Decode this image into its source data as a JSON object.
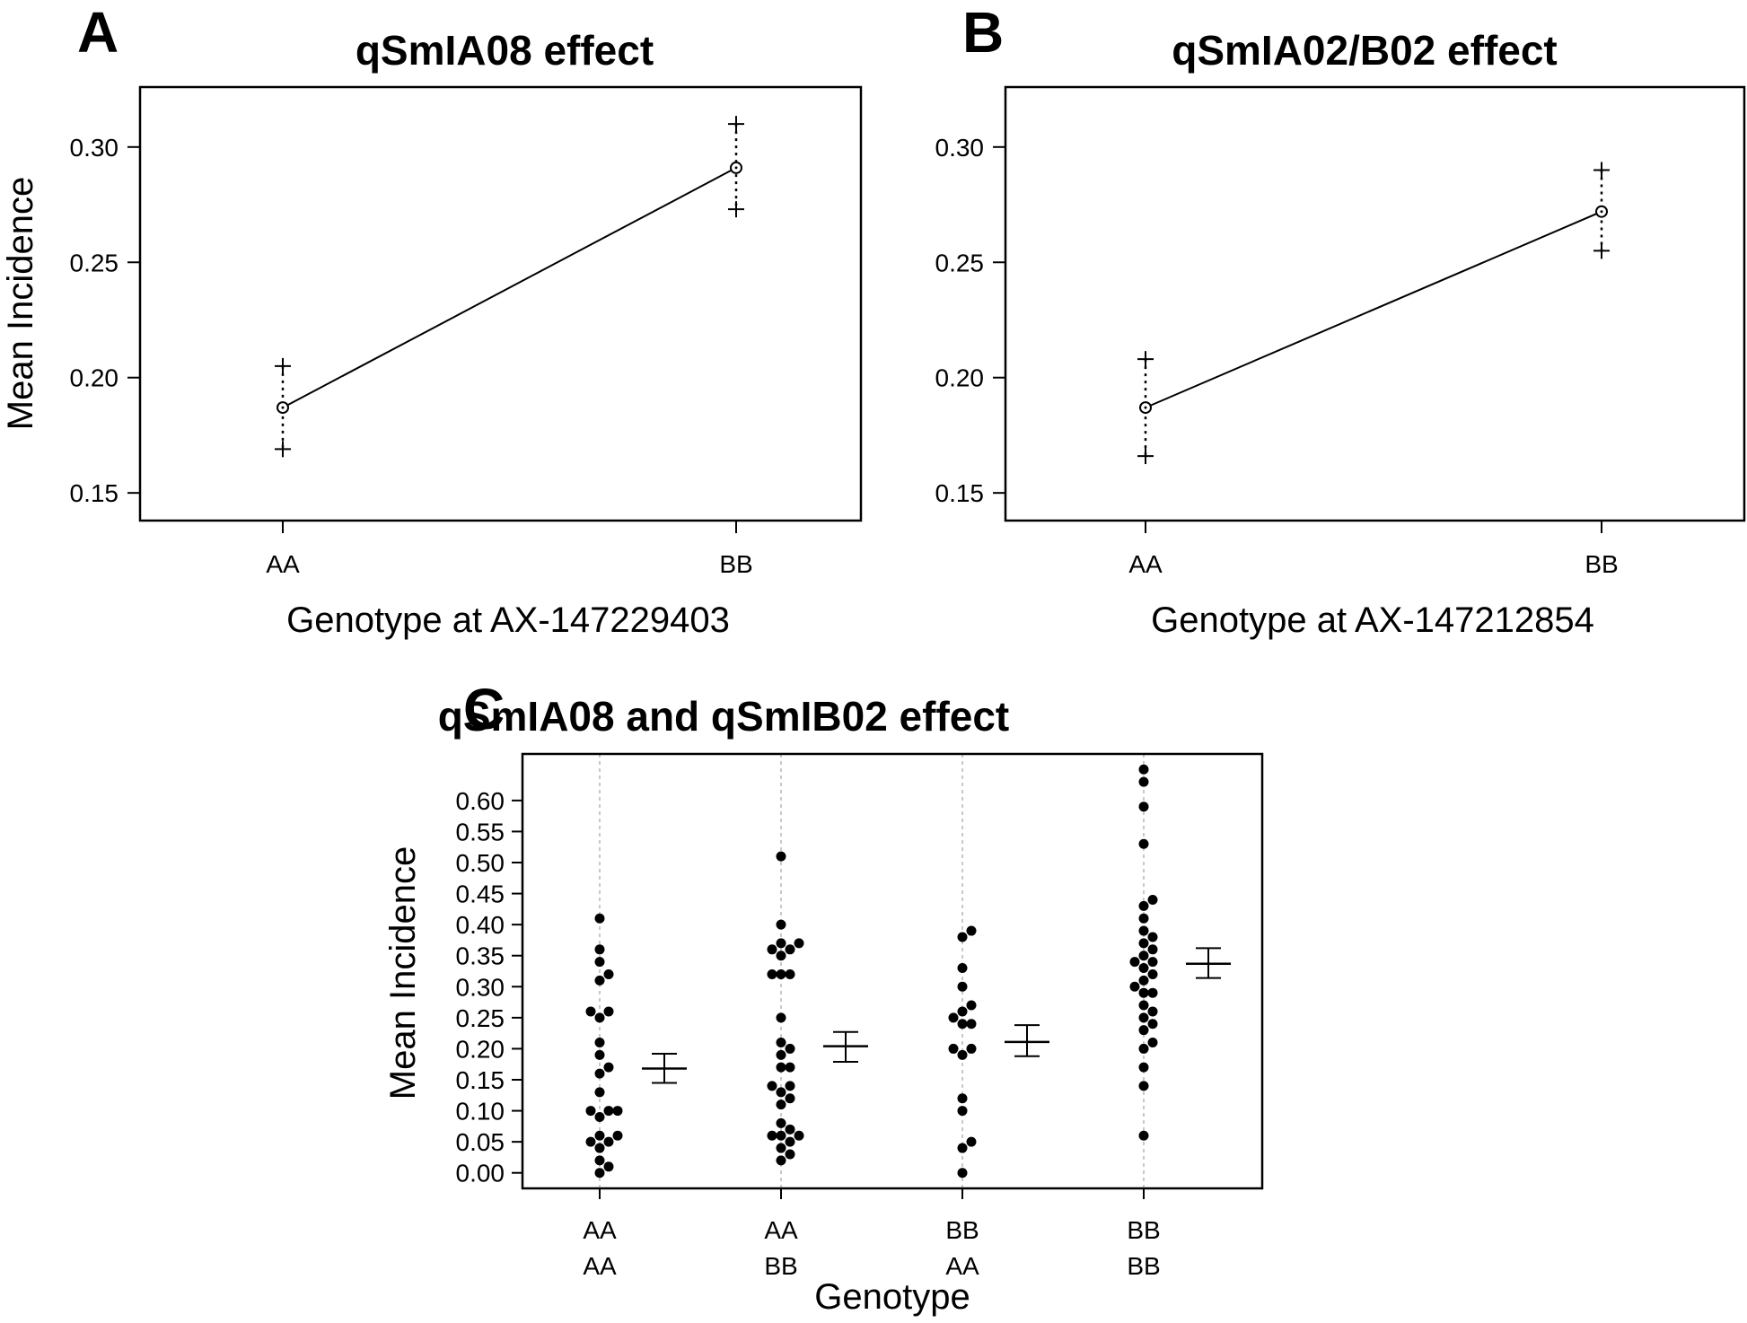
{
  "panel_letters": [
    "A",
    "B",
    "C"
  ],
  "chart_data": [
    {
      "panel": "A",
      "type": "line",
      "title": "qSmIA08 effect",
      "xlabel": "Genotype at AX-147229403",
      "ylabel": "Mean Incidence",
      "categories": [
        "AA",
        "BB"
      ],
      "series": [
        {
          "mean": [
            0.187,
            0.291
          ],
          "upper": [
            0.205,
            0.31
          ],
          "lower": [
            0.169,
            0.273
          ]
        }
      ],
      "ylim": [
        0.138,
        0.326
      ],
      "yticks": [
        "0.15",
        "0.20",
        "0.25",
        "0.30"
      ],
      "grid": false
    },
    {
      "panel": "B",
      "type": "line",
      "title": "qSmIA02/B02 effect",
      "xlabel": "Genotype at AX-147212854",
      "ylabel": "",
      "categories": [
        "AA",
        "BB"
      ],
      "series": [
        {
          "mean": [
            0.187,
            0.272
          ],
          "upper": [
            0.208,
            0.29
          ],
          "lower": [
            0.166,
            0.255
          ]
        }
      ],
      "ylim": [
        0.138,
        0.326
      ],
      "yticks": [
        "0.15",
        "0.20",
        "0.25",
        "0.30"
      ],
      "grid": false
    },
    {
      "panel": "C",
      "type": "scatter",
      "title": "qSmIA08 and qSmIB02 effect",
      "xlabel": "Genotype",
      "ylabel": "Mean Incidence",
      "categories": [
        [
          "AA",
          "AA"
        ],
        [
          "AA",
          "BB"
        ],
        [
          "BB",
          "AA"
        ],
        [
          "BB",
          "BB"
        ]
      ],
      "groups": [
        {
          "points": [
            0.41,
            0.36,
            0.34,
            0.32,
            0.31,
            0.26,
            0.26,
            0.25,
            0.21,
            0.19,
            0.17,
            0.16,
            0.13,
            0.1,
            0.1,
            0.1,
            0.09,
            0.06,
            0.06,
            0.05,
            0.05,
            0.04,
            0.02,
            0.01,
            0.0
          ],
          "mean": 0.168,
          "upper": 0.192,
          "lower": 0.145
        },
        {
          "points": [
            0.51,
            0.4,
            0.37,
            0.37,
            0.36,
            0.36,
            0.35,
            0.32,
            0.32,
            0.32,
            0.25,
            0.21,
            0.2,
            0.19,
            0.17,
            0.17,
            0.14,
            0.14,
            0.13,
            0.12,
            0.11,
            0.08,
            0.07,
            0.06,
            0.06,
            0.06,
            0.05,
            0.04,
            0.03,
            0.02
          ],
          "mean": 0.204,
          "upper": 0.227,
          "lower": 0.179
        },
        {
          "points": [
            0.39,
            0.38,
            0.33,
            0.3,
            0.27,
            0.26,
            0.25,
            0.24,
            0.24,
            0.2,
            0.2,
            0.19,
            0.12,
            0.1,
            0.05,
            0.04,
            0.0
          ],
          "mean": 0.211,
          "upper": 0.238,
          "lower": 0.188
        },
        {
          "points": [
            0.65,
            0.63,
            0.59,
            0.53,
            0.44,
            0.43,
            0.41,
            0.39,
            0.38,
            0.37,
            0.36,
            0.35,
            0.34,
            0.34,
            0.33,
            0.32,
            0.31,
            0.3,
            0.29,
            0.29,
            0.27,
            0.26,
            0.25,
            0.24,
            0.23,
            0.21,
            0.2,
            0.17,
            0.14,
            0.06
          ],
          "mean": 0.337,
          "upper": 0.362,
          "lower": 0.314
        }
      ],
      "ylim": [
        -0.025,
        0.675
      ],
      "yticks": [
        "0.00",
        "0.05",
        "0.10",
        "0.15",
        "0.20",
        "0.25",
        "0.30",
        "0.35",
        "0.40",
        "0.45",
        "0.50",
        "0.55",
        "0.60"
      ],
      "grid": "vertical dotted"
    }
  ]
}
